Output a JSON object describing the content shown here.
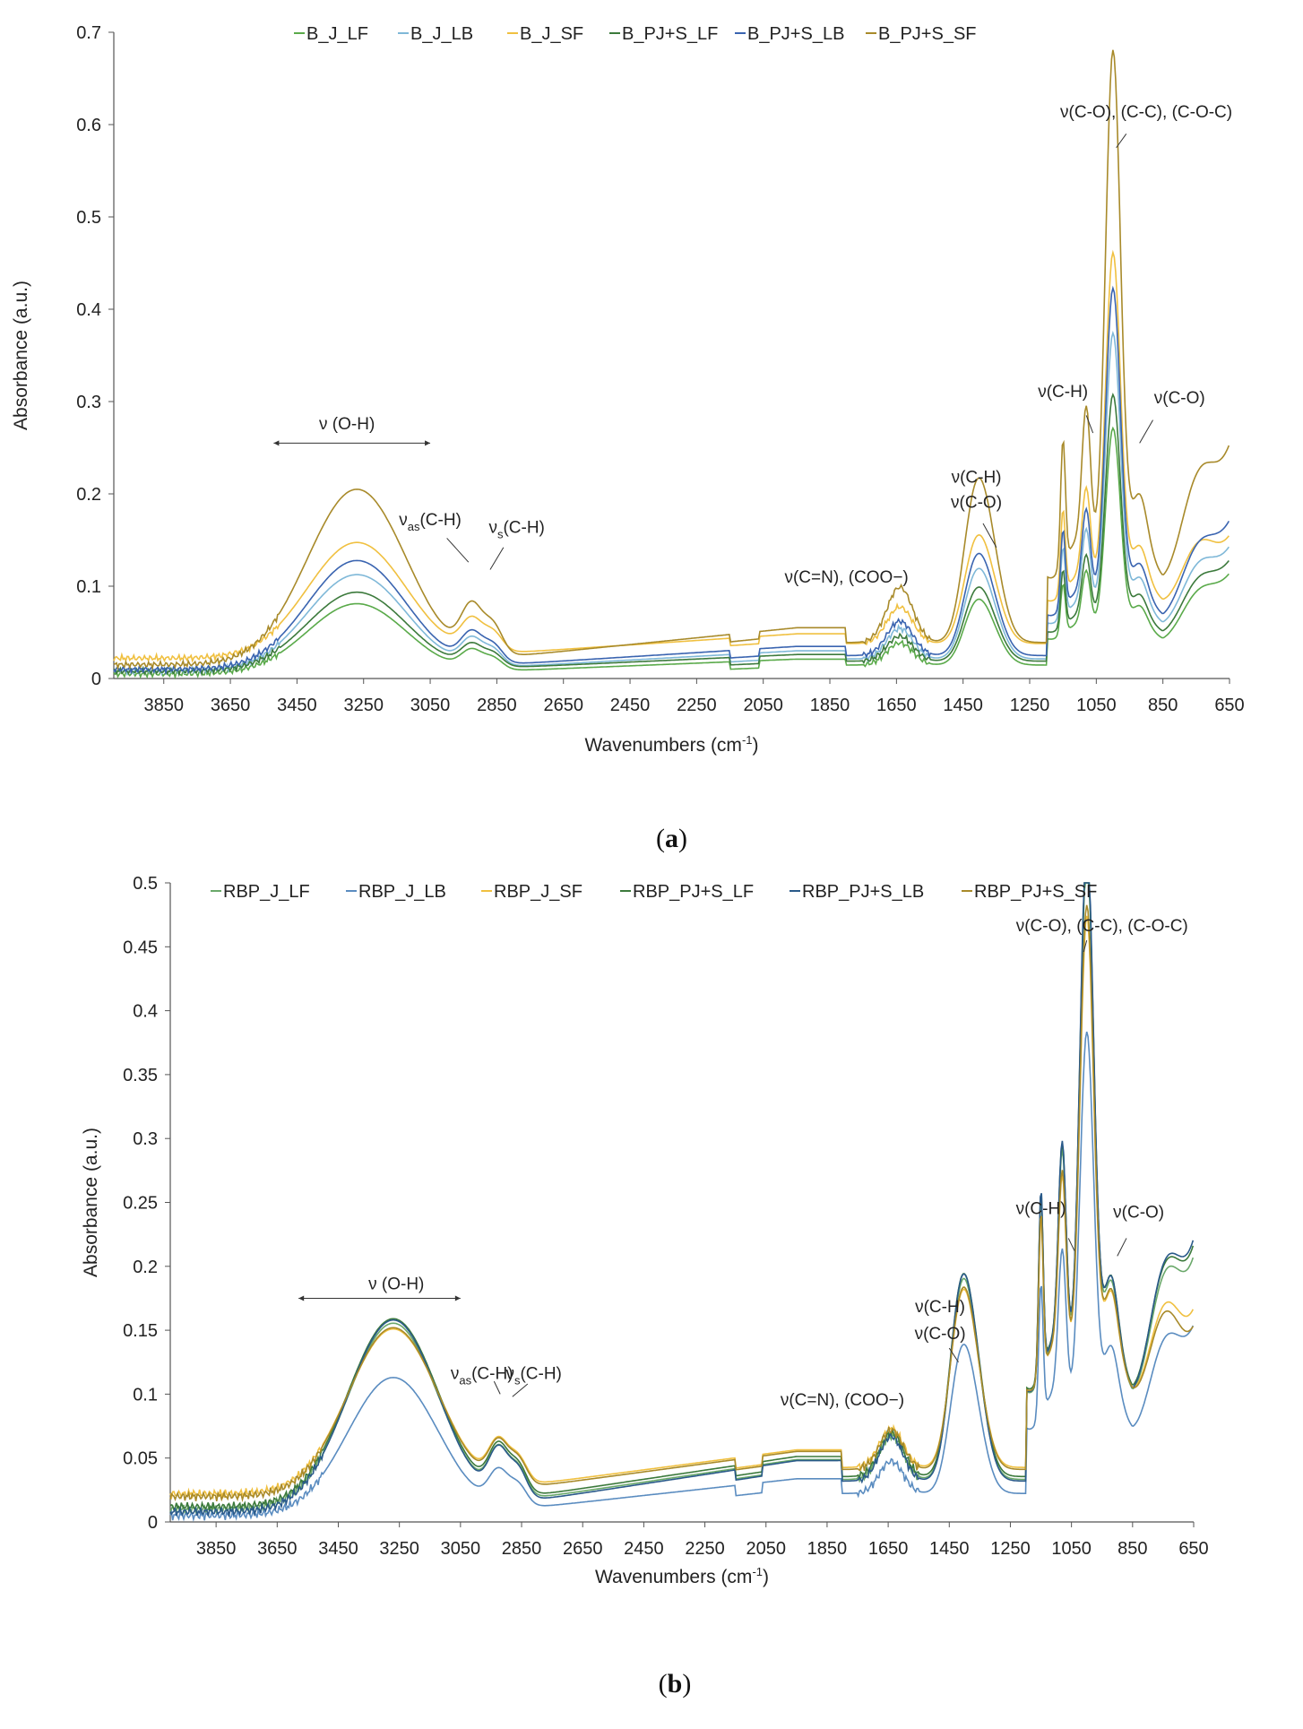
{
  "chart_data": [
    {
      "type": "line",
      "id": "a",
      "caption_open": "(",
      "caption_letter": "a",
      "caption_close": ")",
      "xlabel": "Wavenumbers",
      "xlabel_unit": "(cm",
      "xlabel_sup": "-1",
      "xlabel_unit_close": ")",
      "ylabel": "Absorbance (a.u.)",
      "xlim": [
        4000,
        650
      ],
      "ylim": [
        0,
        0.7
      ],
      "x_ticks": [
        3850,
        3650,
        3450,
        3250,
        3050,
        2850,
        2650,
        2450,
        2250,
        2050,
        1850,
        1650,
        1450,
        1250,
        1050,
        850,
        650
      ],
      "y_ticks": [
        0,
        0.1,
        0.2,
        0.3,
        0.4,
        0.5,
        0.6,
        0.7
      ],
      "y_tick_labels": [
        "0",
        "0.1",
        "0.2",
        "0.3",
        "0.4",
        "0.5",
        "0.6",
        "0.7"
      ],
      "legend_position": "top",
      "series": [
        {
          "name": "B_J_LF",
          "color": "#5aaa4a",
          "scale": 0.4,
          "offset": 0.005,
          "tail": 0.12
        },
        {
          "name": "B_J_LB",
          "color": "#7fb8d8",
          "scale": 0.55,
          "offset": 0.008,
          "tail": 0.15
        },
        {
          "name": "B_J_SF",
          "color": "#f0c040",
          "scale": 0.66,
          "offset": 0.022,
          "tail": 0.16
        },
        {
          "name": "B_PJ+S_LF",
          "color": "#3c7a3c",
          "scale": 0.45,
          "offset": 0.008,
          "tail": 0.135
        },
        {
          "name": "B_PJ+S_LB",
          "color": "#3a64b0",
          "scale": 0.62,
          "offset": 0.01,
          "tail": 0.18
        },
        {
          "name": "B_PJ+S_SF",
          "color": "#a88a2a",
          "scale": 1.0,
          "offset": 0.015,
          "tail": 0.265
        }
      ],
      "profile": {
        "oh_peak": 0.19,
        "oh_center": 3270,
        "ch_peak": 0.055,
        "ch_center": 2925,
        "cn_peak": 0.06,
        "cn_center": 1640,
        "ch2_peak": 0.11,
        "ch2_center": 1380,
        "co_peak": 0.57,
        "co_center": 1000,
        "ch3_peak": 0.15,
        "ch3_center": 1080
      },
      "annotations": [
        {
          "text": "ν (O-H)",
          "x": 3300,
          "y": 0.27
        },
        {
          "text": "ν(C=N), (COO−)",
          "x": 1800,
          "y": 0.104
        },
        {
          "text": "ν(C-H)",
          "x": 1410,
          "y": 0.212
        },
        {
          "text": "ν(C-O)",
          "x": 1410,
          "y": 0.185
        },
        {
          "text": "ν(C-H)",
          "x": 1150,
          "y": 0.305
        },
        {
          "text": "ν(C-O)",
          "x": 800,
          "y": 0.298
        },
        {
          "text": "ν(C-O), (C-C), (C-O-C)",
          "x": 900,
          "y": 0.608
        }
      ],
      "special_annotations": {
        "vas_base": "ν",
        "vas_sub": "as",
        "vas_rest": "(C-H)",
        "vs_base": "ν",
        "vs_sub": "s",
        "vs_rest": "(C-H)"
      }
    },
    {
      "type": "line",
      "id": "b",
      "caption_open": "(",
      "caption_letter": "b",
      "caption_close": ")",
      "xlabel": "Wavenumbers",
      "xlabel_unit": "(cm",
      "xlabel_sup": "-1",
      "xlabel_unit_close": ")",
      "ylabel": "Absorbance (a.u.)",
      "xlim": [
        4000,
        650
      ],
      "ylim": [
        0,
        0.5
      ],
      "x_ticks": [
        3850,
        3650,
        3450,
        3250,
        3050,
        2850,
        2650,
        2450,
        2250,
        2050,
        1850,
        1650,
        1450,
        1250,
        1050,
        850,
        650
      ],
      "y_ticks": [
        0,
        0.05,
        0.1,
        0.15,
        0.2,
        0.25,
        0.3,
        0.35,
        0.4,
        0.45,
        0.5
      ],
      "y_tick_labels": [
        "0",
        "0.05",
        "0.1",
        "0.15",
        "0.2",
        "0.25",
        "0.3",
        "0.35",
        "0.4",
        "0.45",
        "0.5"
      ],
      "legend_position": "top",
      "series": [
        {
          "name": "RBP_J_LF",
          "color": "#6aa86a",
          "scale": 0.97,
          "offset": 0.01,
          "tail": 0.215
        },
        {
          "name": "RBP_J_LB",
          "color": "#5a8cc0",
          "scale": 0.72,
          "offset": 0.005,
          "tail": 0.16
        },
        {
          "name": "RBP_J_SF",
          "color": "#f0c040",
          "scale": 0.86,
          "offset": 0.022,
          "tail": 0.17
        },
        {
          "name": "RBP_PJ+S_LF",
          "color": "#3c7a3c",
          "scale": 0.98,
          "offset": 0.012,
          "tail": 0.225
        },
        {
          "name": "RBP_PJ+S_LB",
          "color": "#2a5a8a",
          "scale": 1.0,
          "offset": 0.008,
          "tail": 0.23
        },
        {
          "name": "RBP_PJ+S_SF",
          "color": "#a88a2a",
          "scale": 0.88,
          "offset": 0.02,
          "tail": 0.155
        }
      ],
      "profile": {
        "oh_peak": 0.15,
        "oh_center": 3270,
        "ch_peak": 0.04,
        "ch_center": 2925,
        "cn_peak": 0.035,
        "cn_center": 1640,
        "ch2_peak": 0.1,
        "ch2_center": 1380,
        "co_peak": 0.43,
        "co_center": 1000,
        "ch3_peak": 0.16,
        "ch3_center": 1080
      },
      "annotations": [
        {
          "text": "ν (O-H)",
          "x": 3260,
          "y": 0.182
        },
        {
          "text": "ν(C=N), (COO−)",
          "x": 1800,
          "y": 0.091
        },
        {
          "text": "ν(C-H)",
          "x": 1480,
          "y": 0.164
        },
        {
          "text": "ν(C-O)",
          "x": 1480,
          "y": 0.143
        },
        {
          "text": "ν(C-H)",
          "x": 1150,
          "y": 0.241
        },
        {
          "text": "ν(C-O)",
          "x": 830,
          "y": 0.238
        },
        {
          "text": "ν(C-O), (C-C), (C-O-C)",
          "x": 950,
          "y": 0.462
        }
      ],
      "special_annotations": {
        "vas_base": "ν",
        "vas_sub": "as",
        "vas_rest": "(C-H)",
        "vs_base": "ν",
        "vs_sub": "s",
        "vs_rest": "(C-H)"
      }
    }
  ]
}
